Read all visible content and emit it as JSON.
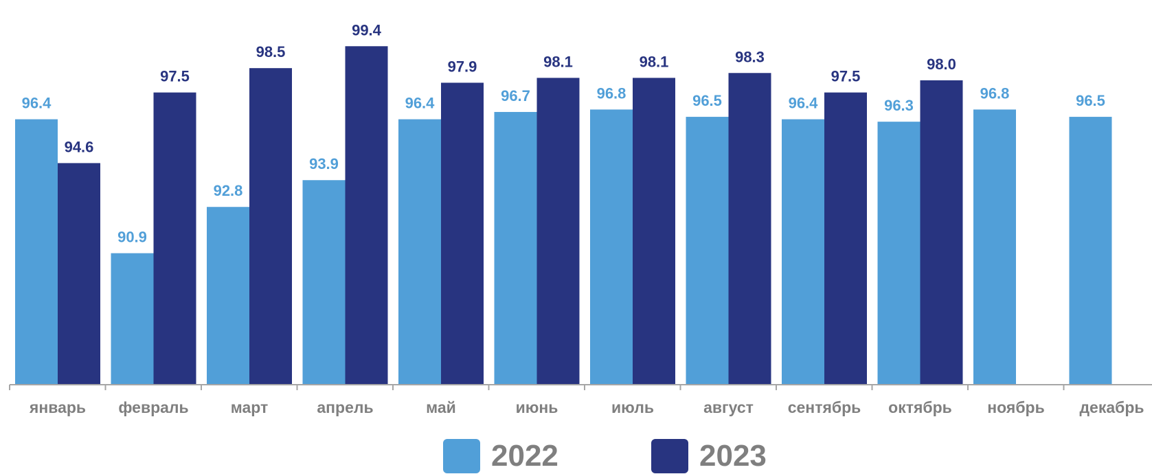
{
  "chart_data": {
    "type": "bar",
    "categories": [
      "январь",
      "февраль",
      "март",
      "апрель",
      "май",
      "июнь",
      "июль",
      "август",
      "сентябрь",
      "октябрь",
      "ноябрь",
      "декабрь"
    ],
    "series": [
      {
        "name": "2022",
        "color": "#519fd8",
        "values": [
          96.4,
          90.9,
          92.8,
          93.9,
          96.4,
          96.7,
          96.8,
          96.5,
          96.4,
          96.3,
          96.8,
          96.5
        ],
        "labels": [
          "96.4",
          "90.9",
          "92.8",
          "93.9",
          "96.4",
          "96.7",
          "96.8",
          "96.5",
          "96.4",
          "96.3",
          "96.8",
          "96.5"
        ]
      },
      {
        "name": "2023",
        "color": "#283480",
        "values": [
          94.6,
          97.5,
          98.5,
          99.4,
          97.9,
          98.1,
          98.1,
          98.3,
          97.5,
          98.0,
          null,
          null
        ],
        "labels": [
          "94.6",
          "97.5",
          "98.5",
          "99.4",
          "97.9",
          "98.1",
          "98.1",
          "98.3",
          "97.5",
          "98.0",
          "",
          ""
        ]
      }
    ],
    "ylim": [
      85.5,
      100.0
    ],
    "grid": false,
    "legend_position": "bottom",
    "tick_label_color": "#7f7f7f",
    "axis_color": "#a6a6a6"
  }
}
